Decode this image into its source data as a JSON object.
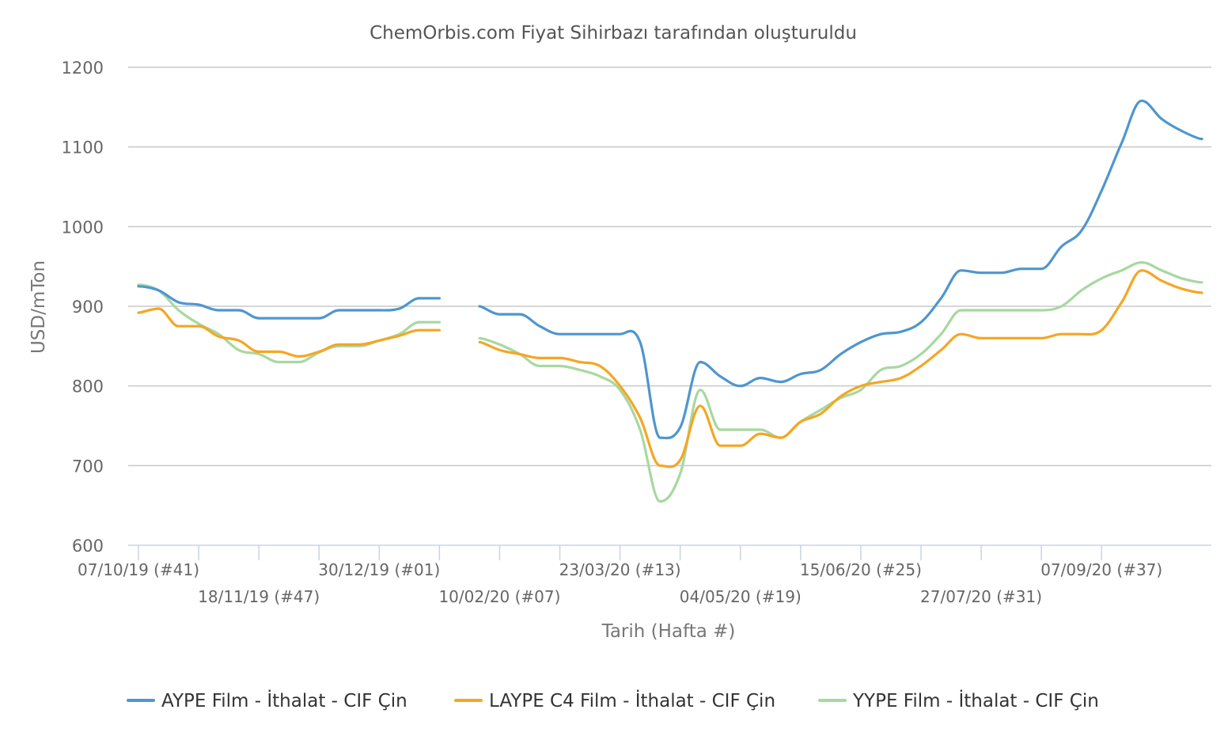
{
  "chart_data": {
    "type": "line",
    "title": "ChemOrbis.com Fiyat Sihirbazı tarafından oluşturuldu",
    "xlabel": "Tarih (Hafta #)",
    "ylabel": "USD/mTon",
    "ylim": [
      600,
      1200
    ],
    "y_ticks": [
      600,
      700,
      800,
      900,
      1000,
      1100,
      1200
    ],
    "grid": true,
    "legend_position": "bottom",
    "x_tick_labels": [
      {
        "week": 0,
        "label": "07/10/19 (#41)",
        "row": 1
      },
      {
        "week": 6,
        "label": "18/11/19 (#47)",
        "row": 2
      },
      {
        "week": 12,
        "label": "30/12/19 (#01)",
        "row": 1
      },
      {
        "week": 18,
        "label": "10/02/20 (#07)",
        "row": 2
      },
      {
        "week": 24,
        "label": "23/03/20 (#13)",
        "row": 1
      },
      {
        "week": 30,
        "label": "04/05/20 (#19)",
        "row": 2
      },
      {
        "week": 36,
        "label": "15/06/20 (#25)",
        "row": 1
      },
      {
        "week": 42,
        "label": "27/07/20 (#31)",
        "row": 2
      },
      {
        "week": 48,
        "label": "07/09/20 (#37)",
        "row": 1
      }
    ],
    "x_tick_marks": [
      0,
      3,
      6,
      9,
      12,
      15,
      18,
      21,
      24,
      27,
      30,
      33,
      36,
      39,
      42,
      45,
      48
    ],
    "series": [
      {
        "name": "AYPE Film - İthalat - CIF Çin",
        "color": "#4e96cf",
        "points": [
          [
            0,
            925
          ],
          [
            1,
            920
          ],
          [
            2,
            905
          ],
          [
            3,
            902
          ],
          [
            4,
            895
          ],
          [
            5,
            895
          ],
          [
            6,
            885
          ],
          [
            7,
            885
          ],
          [
            8,
            885
          ],
          [
            9,
            885
          ],
          [
            10,
            895
          ],
          [
            11,
            895
          ],
          [
            12,
            895
          ],
          [
            13,
            897
          ],
          [
            14,
            910
          ],
          [
            15,
            910
          ],
          null,
          [
            17,
            900
          ],
          [
            18,
            890
          ],
          [
            19,
            890
          ],
          [
            20,
            875
          ],
          [
            21,
            865
          ],
          [
            22,
            865
          ],
          [
            23,
            865
          ],
          [
            24,
            865
          ],
          [
            25,
            855
          ],
          [
            26,
            735
          ],
          [
            27,
            748
          ],
          [
            28,
            830
          ],
          [
            29,
            812
          ],
          [
            30,
            800
          ],
          [
            31,
            810
          ],
          [
            32,
            805
          ],
          [
            33,
            815
          ],
          [
            34,
            820
          ],
          [
            35,
            840
          ],
          [
            36,
            855
          ],
          [
            37,
            865
          ],
          [
            38,
            868
          ],
          [
            39,
            880
          ],
          [
            40,
            910
          ],
          [
            41,
            945
          ],
          [
            42,
            942
          ],
          [
            43,
            942
          ],
          [
            44,
            947
          ],
          [
            45,
            947
          ],
          [
            46,
            975
          ],
          [
            47,
            995
          ],
          [
            48,
            1045
          ],
          [
            49,
            1105
          ],
          [
            50,
            1158
          ],
          [
            51,
            1135
          ],
          [
            52,
            1120
          ],
          [
            53,
            1110
          ]
        ]
      },
      {
        "name": "LAYPE C4 Film - İthalat - CIF Çin",
        "color": "#f5a623",
        "points": [
          [
            0,
            892
          ],
          [
            1,
            897
          ],
          [
            2,
            875
          ],
          [
            3,
            875
          ],
          [
            4,
            862
          ],
          [
            5,
            857
          ],
          [
            6,
            843
          ],
          [
            7,
            843
          ],
          [
            8,
            837
          ],
          [
            9,
            843
          ],
          [
            10,
            852
          ],
          [
            11,
            852
          ],
          [
            12,
            857
          ],
          [
            13,
            863
          ],
          [
            14,
            870
          ],
          [
            15,
            870
          ],
          null,
          [
            17,
            855
          ],
          [
            18,
            845
          ],
          [
            19,
            840
          ],
          [
            20,
            835
          ],
          [
            21,
            835
          ],
          [
            22,
            830
          ],
          [
            23,
            825
          ],
          [
            24,
            800
          ],
          [
            25,
            760
          ],
          [
            26,
            700
          ],
          [
            27,
            707
          ],
          [
            28,
            775
          ],
          [
            29,
            725
          ],
          [
            30,
            725
          ],
          [
            31,
            740
          ],
          [
            32,
            735
          ],
          [
            33,
            755
          ],
          [
            34,
            765
          ],
          [
            35,
            787
          ],
          [
            36,
            800
          ],
          [
            37,
            805
          ],
          [
            38,
            810
          ],
          [
            39,
            825
          ],
          [
            40,
            845
          ],
          [
            41,
            865
          ],
          [
            42,
            860
          ],
          [
            43,
            860
          ],
          [
            44,
            860
          ],
          [
            45,
            860
          ],
          [
            46,
            865
          ],
          [
            47,
            865
          ],
          [
            48,
            870
          ],
          [
            49,
            905
          ],
          [
            50,
            945
          ],
          [
            51,
            932
          ],
          [
            52,
            922
          ],
          [
            53,
            917
          ]
        ]
      },
      {
        "name": "YYPE Film - İthalat - CIF Çin",
        "color": "#a8d8a0",
        "points": [
          [
            0,
            927
          ],
          [
            1,
            920
          ],
          [
            2,
            895
          ],
          [
            3,
            878
          ],
          [
            4,
            865
          ],
          [
            5,
            845
          ],
          [
            6,
            840
          ],
          [
            7,
            830
          ],
          [
            8,
            830
          ],
          [
            9,
            842
          ],
          [
            10,
            850
          ],
          [
            11,
            850
          ],
          [
            12,
            857
          ],
          [
            13,
            865
          ],
          [
            14,
            880
          ],
          [
            15,
            880
          ],
          null,
          [
            17,
            860
          ],
          [
            18,
            852
          ],
          [
            19,
            840
          ],
          [
            20,
            825
          ],
          [
            21,
            825
          ],
          [
            22,
            820
          ],
          [
            23,
            812
          ],
          [
            24,
            795
          ],
          [
            25,
            745
          ],
          [
            26,
            655
          ],
          [
            27,
            690
          ],
          [
            28,
            795
          ],
          [
            29,
            745
          ],
          [
            30,
            745
          ],
          [
            31,
            745
          ],
          [
            32,
            735
          ],
          [
            33,
            755
          ],
          [
            34,
            770
          ],
          [
            35,
            785
          ],
          [
            36,
            795
          ],
          [
            37,
            820
          ],
          [
            38,
            825
          ],
          [
            39,
            840
          ],
          [
            40,
            865
          ],
          [
            41,
            895
          ],
          [
            42,
            895
          ],
          [
            43,
            895
          ],
          [
            44,
            895
          ],
          [
            45,
            895
          ],
          [
            46,
            900
          ],
          [
            47,
            920
          ],
          [
            48,
            935
          ],
          [
            49,
            945
          ],
          [
            50,
            955
          ],
          [
            51,
            945
          ],
          [
            52,
            935
          ],
          [
            53,
            930
          ]
        ]
      }
    ]
  }
}
